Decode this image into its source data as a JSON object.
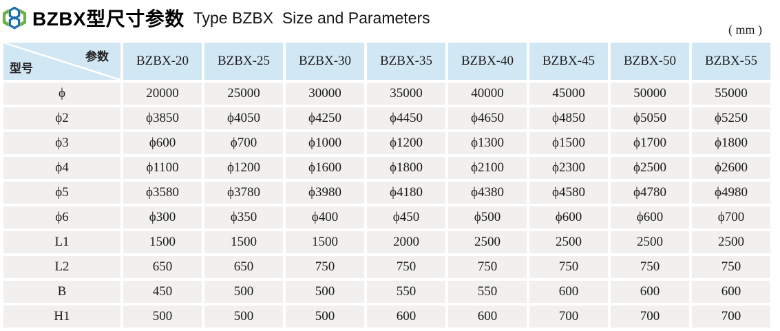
{
  "header": {
    "title_cn": "BZBX型尺寸参数",
    "title_en": "Type BZBX  Size and Parameters",
    "unit": "( mm )",
    "logo_icon": "brand-emblem-icon"
  },
  "colors": {
    "header_cell_bg": "#d2e7f4",
    "data_cell_bg": "#f1f0ee",
    "logo_blue": "#1d6db1",
    "logo_green": "#6db33f",
    "diagonal_line": "#ffffff"
  },
  "table": {
    "corner": {
      "top_right_label": "参数",
      "bottom_left_label": "型号"
    },
    "columns": [
      "BZBX-20",
      "BZBX-25",
      "BZBX-30",
      "BZBX-35",
      "BZBX-40",
      "BZBX-45",
      "BZBX-50",
      "BZBX-55"
    ],
    "rows": [
      {
        "label": "ϕ",
        "values": [
          "20000",
          "25000",
          "30000",
          "35000",
          "40000",
          "45000",
          "50000",
          "55000"
        ]
      },
      {
        "label": "ϕ2",
        "values": [
          "ϕ3850",
          "ϕ4050",
          "ϕ4250",
          "ϕ4450",
          "ϕ4650",
          "ϕ4850",
          "ϕ5050",
          "ϕ5250"
        ]
      },
      {
        "label": "ϕ3",
        "values": [
          "ϕ600",
          "ϕ700",
          "ϕ1000",
          "ϕ1200",
          "ϕ1300",
          "ϕ1500",
          "ϕ1700",
          "ϕ1800"
        ]
      },
      {
        "label": "ϕ4",
        "values": [
          "ϕ1100",
          "ϕ1200",
          "ϕ1600",
          "ϕ1800",
          "ϕ2100",
          "ϕ2300",
          "ϕ2500",
          "ϕ2600"
        ]
      },
      {
        "label": "ϕ5",
        "values": [
          "ϕ3580",
          "ϕ3780",
          "ϕ3980",
          "ϕ4180",
          "ϕ4380",
          "ϕ4580",
          "ϕ4780",
          "ϕ4980"
        ]
      },
      {
        "label": "ϕ6",
        "values": [
          "ϕ300",
          "ϕ350",
          "ϕ400",
          "ϕ450",
          "ϕ500",
          "ϕ600",
          "ϕ600",
          "ϕ700"
        ]
      },
      {
        "label": "L1",
        "values": [
          "1500",
          "1500",
          "1500",
          "2000",
          "2500",
          "2500",
          "2500",
          "2500"
        ]
      },
      {
        "label": "L2",
        "values": [
          "650",
          "650",
          "750",
          "750",
          "750",
          "750",
          "750",
          "750"
        ]
      },
      {
        "label": "B",
        "values": [
          "450",
          "500",
          "500",
          "550",
          "550",
          "600",
          "600",
          "600"
        ]
      },
      {
        "label": "H1",
        "values": [
          "500",
          "500",
          "500",
          "600",
          "600",
          "700",
          "700",
          "700"
        ]
      }
    ],
    "layout": {
      "label_col_width": 170,
      "data_col_width": 114
    }
  }
}
